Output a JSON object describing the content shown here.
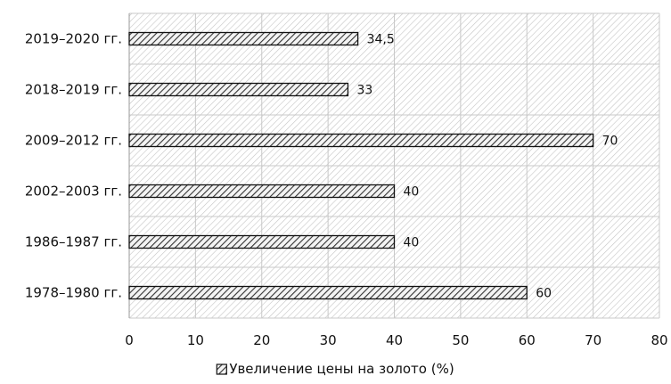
{
  "chart_data": {
    "type": "bar",
    "orientation": "horizontal",
    "categories": [
      "2019–2020 гг.",
      "2018–2019 гг.",
      "2009–2012 гг.",
      "2002–2003 гг.",
      "1986–1987 гг.",
      "1978–1980 гг."
    ],
    "series": [
      {
        "name": "Увеличение цены на золото (%)",
        "values": [
          34.5,
          33,
          70,
          40,
          40,
          60
        ],
        "data_labels": [
          "34,5",
          "33",
          "70",
          "40",
          "40",
          "60"
        ]
      }
    ],
    "xlim": [
      0,
      80
    ],
    "xticks": [
      0,
      10,
      20,
      30,
      40,
      50,
      60,
      70,
      80
    ],
    "grid": true,
    "plot_background": "hatched",
    "bar_fill": "hatched",
    "legend_position": "bottom",
    "colors": {
      "bar_stroke": "#111111",
      "hatch_line": "#555555",
      "background_hatch": "#bdbdbd",
      "grid": "#c8c8c8"
    }
  }
}
